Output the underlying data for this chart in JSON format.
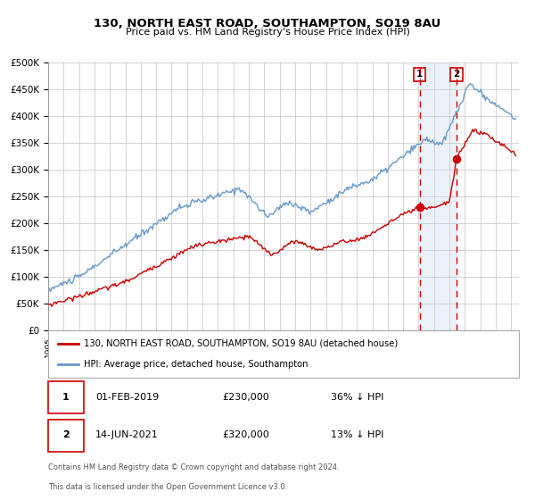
{
  "title": "130, NORTH EAST ROAD, SOUTHAMPTON, SO19 8AU",
  "subtitle": "Price paid vs. HM Land Registry's House Price Index (HPI)",
  "legend_label_red": "130, NORTH EAST ROAD, SOUTHAMPTON, SO19 8AU (detached house)",
  "legend_label_blue": "HPI: Average price, detached house, Southampton",
  "footnote1": "Contains HM Land Registry data © Crown copyright and database right 2024.",
  "footnote2": "This data is licensed under the Open Government Licence v3.0.",
  "sale1_date": "01-FEB-2019",
  "sale1_price": "£230,000",
  "sale1_pct": "36% ↓ HPI",
  "sale1_year": 2019.083,
  "sale1_value": 230000,
  "sale2_date": "14-JUN-2021",
  "sale2_price": "£320,000",
  "sale2_pct": "13% ↓ HPI",
  "sale2_year": 2021.458,
  "sale2_value": 320000,
  "red_color": "#cc0000",
  "blue_color": "#6699cc",
  "ylim": [
    0,
    500000
  ],
  "xlim_start": 1995.0,
  "xlim_end": 2025.5,
  "background_color": "#ffffff",
  "grid_color": "#cccccc",
  "shade_color": "#c8d8f0"
}
